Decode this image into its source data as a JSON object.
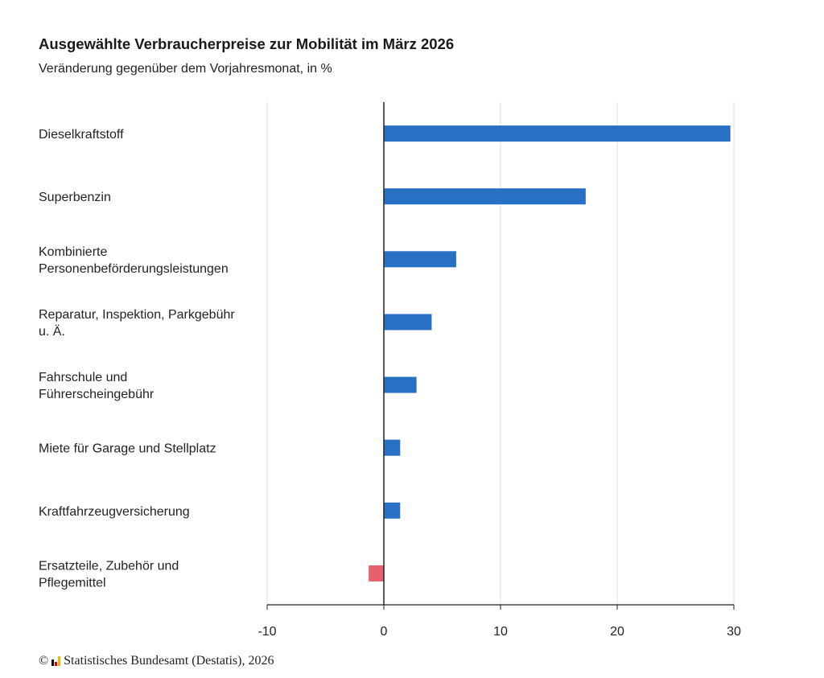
{
  "title": "Ausgewählte Verbraucherpreise zur Mobilität im März 2026",
  "subtitle": "Veränderung gegenüber dem Vorjahresmonat, in %",
  "footer": {
    "copyright_symbol": "©",
    "source": "Statistisches Bundesamt (Destatis), 2026"
  },
  "colors": {
    "positive": "#2870c4",
    "negative": "#e6606f",
    "grid": "#e0e0e0",
    "axis": "#222222"
  },
  "chart_data": {
    "type": "bar",
    "orientation": "horizontal",
    "categories": [
      [
        "Dieselkraftstoff"
      ],
      [
        "Superbenzin"
      ],
      [
        "Kombinierte",
        "Personenbeförderungsleistungen"
      ],
      [
        "Reparatur, Inspektion, Parkgebühr",
        "u. Ä."
      ],
      [
        "Fahrschule und",
        "Führerscheingebühr"
      ],
      [
        "Miete für Garage und Stellplatz"
      ],
      [
        "Kraftfahrzeugversicherung"
      ],
      [
        "Ersatzteile, Zubehör und",
        "Pflegemittel"
      ]
    ],
    "values": [
      29.7,
      17.3,
      6.2,
      4.1,
      2.8,
      1.4,
      1.4,
      -1.3
    ],
    "xlim": [
      -10,
      30
    ],
    "xticks": [
      "-10",
      "0",
      "10",
      "20",
      "30"
    ],
    "grid": true,
    "xlabel": "",
    "ylabel": ""
  }
}
